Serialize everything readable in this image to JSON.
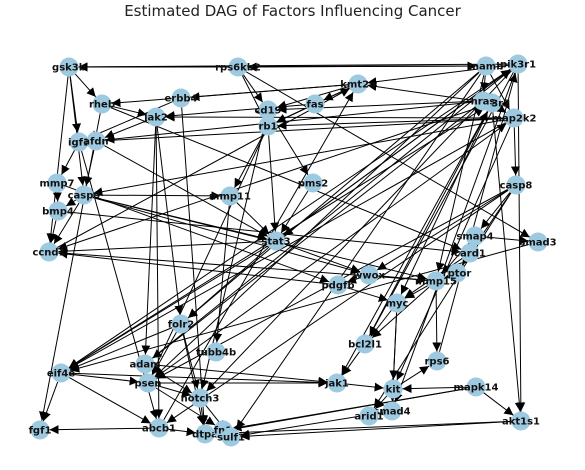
{
  "title": "Estimated DAG of Factors Influencing Cancer",
  "colors": {
    "node_fill": "#9ecae1",
    "edge": "#000000",
    "label": "#111111",
    "background": "#ffffff"
  },
  "nodes": [
    {
      "id": "gsk3b",
      "label": "gsk3b"
    },
    {
      "id": "rps6kb2",
      "label": "rps6kb2"
    },
    {
      "id": "mamb",
      "label": "mamb"
    },
    {
      "id": "pik3r1",
      "label": "pik3r1"
    },
    {
      "id": "pik3r2",
      "label": "pik3r2"
    },
    {
      "id": "erbb4",
      "label": "erbb4"
    },
    {
      "id": "kmt2a",
      "label": "kmt2a"
    },
    {
      "id": "fas",
      "label": "fas"
    },
    {
      "id": "rheb",
      "label": "rheb"
    },
    {
      "id": "jak2",
      "label": "jak2"
    },
    {
      "id": "cd19",
      "label": "cd19"
    },
    {
      "id": "hras",
      "label": "hras"
    },
    {
      "id": "map2k2",
      "label": "map2k2"
    },
    {
      "id": "rb1",
      "label": "rb1"
    },
    {
      "id": "igf1",
      "label": "igf1"
    },
    {
      "id": "afdn",
      "label": "afdn"
    },
    {
      "id": "mmp7",
      "label": "mmp7"
    },
    {
      "id": "casp9",
      "label": "casp9"
    },
    {
      "id": "pms2",
      "label": "pms2"
    },
    {
      "id": "casp8",
      "label": "casp8"
    },
    {
      "id": "mmp11",
      "label": "mmp11"
    },
    {
      "id": "bmp4",
      "label": "bmp4"
    },
    {
      "id": "ccnd1",
      "label": "ccnd1"
    },
    {
      "id": "stat3",
      "label": "stat3"
    },
    {
      "id": "smap4",
      "label": "smap4"
    },
    {
      "id": "smad3",
      "label": "smad3"
    },
    {
      "id": "card1",
      "label": "card1"
    },
    {
      "id": "rptor",
      "label": "rptor"
    },
    {
      "id": "wwox",
      "label": "wwox"
    },
    {
      "id": "pdgfb",
      "label": "pdgfb"
    },
    {
      "id": "mmp15",
      "label": "mmp15"
    },
    {
      "id": "myc",
      "label": "myc"
    },
    {
      "id": "folr2",
      "label": "folr2"
    },
    {
      "id": "bcl2l1",
      "label": "bcl2l1"
    },
    {
      "id": "tubb4b",
      "label": "tubb4b"
    },
    {
      "id": "eif4e",
      "label": "eif4e"
    },
    {
      "id": "adam",
      "label": "adam"
    },
    {
      "id": "rps6",
      "label": "rps6"
    },
    {
      "id": "psen",
      "label": "psen"
    },
    {
      "id": "jak1",
      "label": "jak1"
    },
    {
      "id": "kit",
      "label": "kit"
    },
    {
      "id": "mapk14",
      "label": "mapk14"
    },
    {
      "id": "notch3",
      "label": "notch3"
    },
    {
      "id": "smad4",
      "label": "smad4"
    },
    {
      "id": "arid1",
      "label": "arid1"
    },
    {
      "id": "akt1s1",
      "label": "akt1s1"
    },
    {
      "id": "fgf1",
      "label": "fgf1"
    },
    {
      "id": "abcb1",
      "label": "abcb1"
    },
    {
      "id": "dtpa",
      "label": "dtpa"
    },
    {
      "id": "fn1",
      "label": "fn1"
    },
    {
      "id": "sulf1",
      "label": "sulf1"
    }
  ],
  "edges": [
    [
      "mamb",
      "gsk3b"
    ],
    [
      "pik3r1",
      "gsk3b"
    ],
    [
      "mamb",
      "rps6kb2"
    ],
    [
      "rps6kb2",
      "gsk3b"
    ],
    [
      "rps6kb2",
      "rb1"
    ],
    [
      "rps6kb2",
      "cd19"
    ],
    [
      "kmt2a",
      "fas"
    ],
    [
      "kmt2a",
      "cd19"
    ],
    [
      "kmt2a",
      "erbb4"
    ],
    [
      "kmt2a",
      "rheb"
    ],
    [
      "kmt2a",
      "rb1"
    ],
    [
      "pik3r2",
      "kmt2a"
    ],
    [
      "pik3r1",
      "kmt2a"
    ],
    [
      "mamb",
      "hras"
    ],
    [
      "mamb",
      "map2k2"
    ],
    [
      "pik3r2",
      "map2k2"
    ],
    [
      "hras",
      "cd19"
    ],
    [
      "hras",
      "afdn"
    ],
    [
      "map2k2",
      "jak2"
    ],
    [
      "map2k2",
      "rb1"
    ],
    [
      "map2k2",
      "casp8"
    ],
    [
      "map2k2",
      "igf1"
    ],
    [
      "gsk3b",
      "igf1"
    ],
    [
      "gsk3b",
      "rheb"
    ],
    [
      "rheb",
      "jak2"
    ],
    [
      "jak2",
      "afdn"
    ],
    [
      "jak2",
      "folr2"
    ],
    [
      "jak2",
      "adam"
    ],
    [
      "erbb4",
      "igf1"
    ],
    [
      "igf1",
      "mmp7"
    ],
    [
      "mmp7",
      "bmp4"
    ],
    [
      "casp9",
      "bmp4"
    ],
    [
      "casp9",
      "ccnd1"
    ],
    [
      "casp9",
      "mmp11"
    ],
    [
      "casp9",
      "stat3"
    ],
    [
      "casp9",
      "mmp15"
    ],
    [
      "bmp4",
      "ccnd1"
    ],
    [
      "afdn",
      "casp9"
    ],
    [
      "afdn",
      "stat3"
    ],
    [
      "mmp11",
      "stat3"
    ],
    [
      "mmp11",
      "tubb4b"
    ],
    [
      "rb1",
      "stat3"
    ],
    [
      "rb1",
      "mmp11"
    ],
    [
      "cd19",
      "pms2"
    ],
    [
      "pms2",
      "stat3"
    ],
    [
      "stat3",
      "ccnd1"
    ],
    [
      "stat3",
      "folr2"
    ],
    [
      "stat3",
      "wwox"
    ],
    [
      "stat3",
      "eif4e"
    ],
    [
      "casp8",
      "smap4"
    ],
    [
      "casp8",
      "card1"
    ],
    [
      "casp8",
      "wwox"
    ],
    [
      "casp8",
      "abcb1"
    ],
    [
      "smap4",
      "smad3"
    ],
    [
      "smap4",
      "mmp15"
    ],
    [
      "card1",
      "rptor"
    ],
    [
      "card1",
      "myc"
    ],
    [
      "rptor",
      "mmp15"
    ],
    [
      "wwox",
      "pdgfb"
    ],
    [
      "wwox",
      "mmp15"
    ],
    [
      "pdgfb",
      "myc"
    ],
    [
      "pdgfb",
      "ccnd1"
    ],
    [
      "mmp15",
      "myc"
    ],
    [
      "mmp15",
      "bcl2l1"
    ],
    [
      "myc",
      "bcl2l1"
    ],
    [
      "myc",
      "kit"
    ],
    [
      "myc",
      "smad4"
    ],
    [
      "mmp15",
      "rps6"
    ],
    [
      "folr2",
      "eif4e"
    ],
    [
      "folr2",
      "psen"
    ],
    [
      "folr2",
      "notch3"
    ],
    [
      "folr2",
      "dtpa"
    ],
    [
      "eif4e",
      "fgf1"
    ],
    [
      "eif4e",
      "psen"
    ],
    [
      "eif4e",
      "jak1"
    ],
    [
      "eif4e",
      "abcb1"
    ],
    [
      "adam",
      "psen"
    ],
    [
      "adam",
      "jak1"
    ],
    [
      "adam",
      "notch3"
    ],
    [
      "psen",
      "jak1"
    ],
    [
      "psen",
      "notch3"
    ],
    [
      "psen",
      "fn1"
    ],
    [
      "notch3",
      "dtpa"
    ],
    [
      "notch3",
      "sulf1"
    ],
    [
      "jak1",
      "kit"
    ],
    [
      "kit",
      "arid1"
    ],
    [
      "kit",
      "smad4"
    ],
    [
      "kit",
      "rps6"
    ],
    [
      "mapk14",
      "kit"
    ],
    [
      "mapk14",
      "akt1s1"
    ],
    [
      "mapk14",
      "dtpa"
    ],
    [
      "mapk14",
      "fn1"
    ],
    [
      "smad4",
      "sulf1"
    ],
    [
      "smad4",
      "arid1"
    ],
    [
      "abcb1",
      "dtpa"
    ],
    [
      "abcb1",
      "fgf1"
    ],
    [
      "dtpa",
      "fn1"
    ],
    [
      "akt1s1",
      "sulf1"
    ],
    [
      "akt1s1",
      "dtpa"
    ],
    [
      "bcl2l1",
      "jak1"
    ],
    [
      "pik3r1",
      "akt1s1"
    ],
    [
      "pik3r2",
      "akt1s1"
    ],
    [
      "mamb",
      "mmp15"
    ],
    [
      "pik3r2",
      "myc"
    ],
    [
      "pik3r1",
      "stat3"
    ],
    [
      "map2k2",
      "eif4e"
    ],
    [
      "pik3r1",
      "eif4e"
    ],
    [
      "mamb",
      "psen"
    ],
    [
      "pik3r2",
      "jak1"
    ],
    [
      "pik3r1",
      "bcl2l1"
    ],
    [
      "map2k2",
      "kit"
    ],
    [
      "mamb",
      "folr2"
    ],
    [
      "pik3r1",
      "notch3"
    ],
    [
      "hras",
      "adam"
    ],
    [
      "map2k2",
      "casp9"
    ],
    [
      "pik3r2",
      "ccnd1"
    ],
    [
      "fas",
      "jak2"
    ],
    [
      "fas",
      "rb1"
    ],
    [
      "gsk3b",
      "casp9"
    ],
    [
      "gsk3b",
      "ccnd1"
    ],
    [
      "rheb",
      "fgf1"
    ],
    [
      "jak2",
      "abcb1"
    ],
    [
      "casp8",
      "psen"
    ],
    [
      "smad3",
      "eif4e"
    ],
    [
      "rps6kb2",
      "smad3"
    ],
    [
      "gsk3b",
      "mamb"
    ],
    [
      "rheb",
      "card1"
    ],
    [
      "erbb4",
      "dtpa"
    ],
    [
      "rb1",
      "psen"
    ],
    [
      "casp9",
      "wwox"
    ],
    [
      "mmp7",
      "pdgfb"
    ],
    [
      "igf1",
      "abcb1"
    ],
    [
      "ccnd1",
      "mmp15"
    ],
    [
      "bmp4",
      "card1"
    ],
    [
      "casp8",
      "arid1"
    ],
    [
      "pik3r1",
      "smad4"
    ],
    [
      "mamb",
      "sulf1"
    ],
    [
      "cd19",
      "notch3"
    ],
    [
      "eif4e",
      "pik3r2"
    ],
    [
      "adam",
      "pik3r1"
    ],
    [
      "stat3",
      "pik3r1"
    ],
    [
      "psen",
      "map2k2"
    ],
    [
      "bcl2l1",
      "pik3r2"
    ],
    [
      "rps6",
      "pik3r1"
    ],
    [
      "abcb1",
      "kmt2a"
    ],
    [
      "ccnd1",
      "kmt2a"
    ]
  ]
}
